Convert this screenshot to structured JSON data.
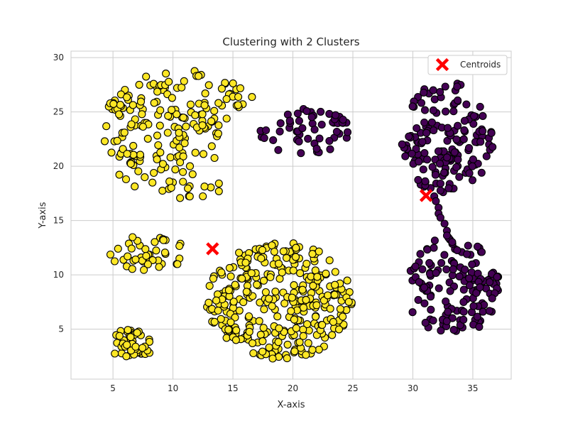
{
  "chart_data": {
    "type": "scatter",
    "title": "Clustering with 2 Clusters",
    "xlabel": "X-axis",
    "ylabel": "Y-axis",
    "xlim": [
      1.5,
      38.2
    ],
    "ylim": [
      0.4,
      30.6
    ],
    "xticks": [
      5,
      10,
      15,
      20,
      25,
      30,
      35
    ],
    "yticks": [
      5,
      10,
      15,
      20,
      25,
      30
    ],
    "grid": true,
    "legend": {
      "placement": "top-right",
      "entries": [
        {
          "label": "Centroids"
        }
      ]
    },
    "colors": {
      "cluster_0": "#440154",
      "cluster_1": "#fde725",
      "centroid": "#ff0000",
      "edge": "#000000",
      "grid": "#cccccc",
      "axes": "#cccccc"
    },
    "centroids": [
      {
        "x": 13.3,
        "y": 12.4
      },
      {
        "x": 31.1,
        "y": 17.3
      }
    ],
    "series": [
      {
        "color_key": "cluster_1",
        "groups": [
          {
            "shape": "ellipse",
            "center": [
              11.0,
              23.0
            ],
            "radii": [
              7.2,
              6.0
            ],
            "count": 200,
            "seed": 11,
            "exclude": {
              "center": [
                19.2,
                20.8
              ],
              "radii": [
                5.2,
                6.2
              ]
            }
          },
          {
            "shape": "ellipse",
            "center": [
              7.9,
              12.0
            ],
            "radii": [
              3.2,
              1.7
            ],
            "count": 42,
            "seed": 23
          },
          {
            "shape": "ellipse",
            "center": [
              19.0,
              7.6
            ],
            "radii": [
              6.2,
              5.4
            ],
            "count": 330,
            "seed": 37
          },
          {
            "shape": "ellipse",
            "center": [
              6.6,
              3.6
            ],
            "radii": [
              1.8,
              1.5
            ],
            "count": 46,
            "seed": 41
          }
        ]
      },
      {
        "color_key": "cluster_0",
        "groups": [
          {
            "shape": "ellipse",
            "center": [
              21.0,
              23.2
            ],
            "radii": [
              3.8,
              2.2
            ],
            "count": 55,
            "seed": 53
          },
          {
            "shape": "ellipse",
            "center": [
              32.8,
              22.6
            ],
            "radii": [
              3.9,
              5.2
            ],
            "count": 160,
            "seed": 67
          },
          {
            "shape": "ellipse",
            "center": [
              33.3,
              8.9
            ],
            "radii": [
              3.9,
              4.6
            ],
            "count": 140,
            "seed": 79
          },
          {
            "shape": "line",
            "from": [
              31.7,
              17.3
            ],
            "to": [
              33.2,
              13.0
            ],
            "count": 9,
            "seed": 83
          }
        ]
      }
    ]
  }
}
